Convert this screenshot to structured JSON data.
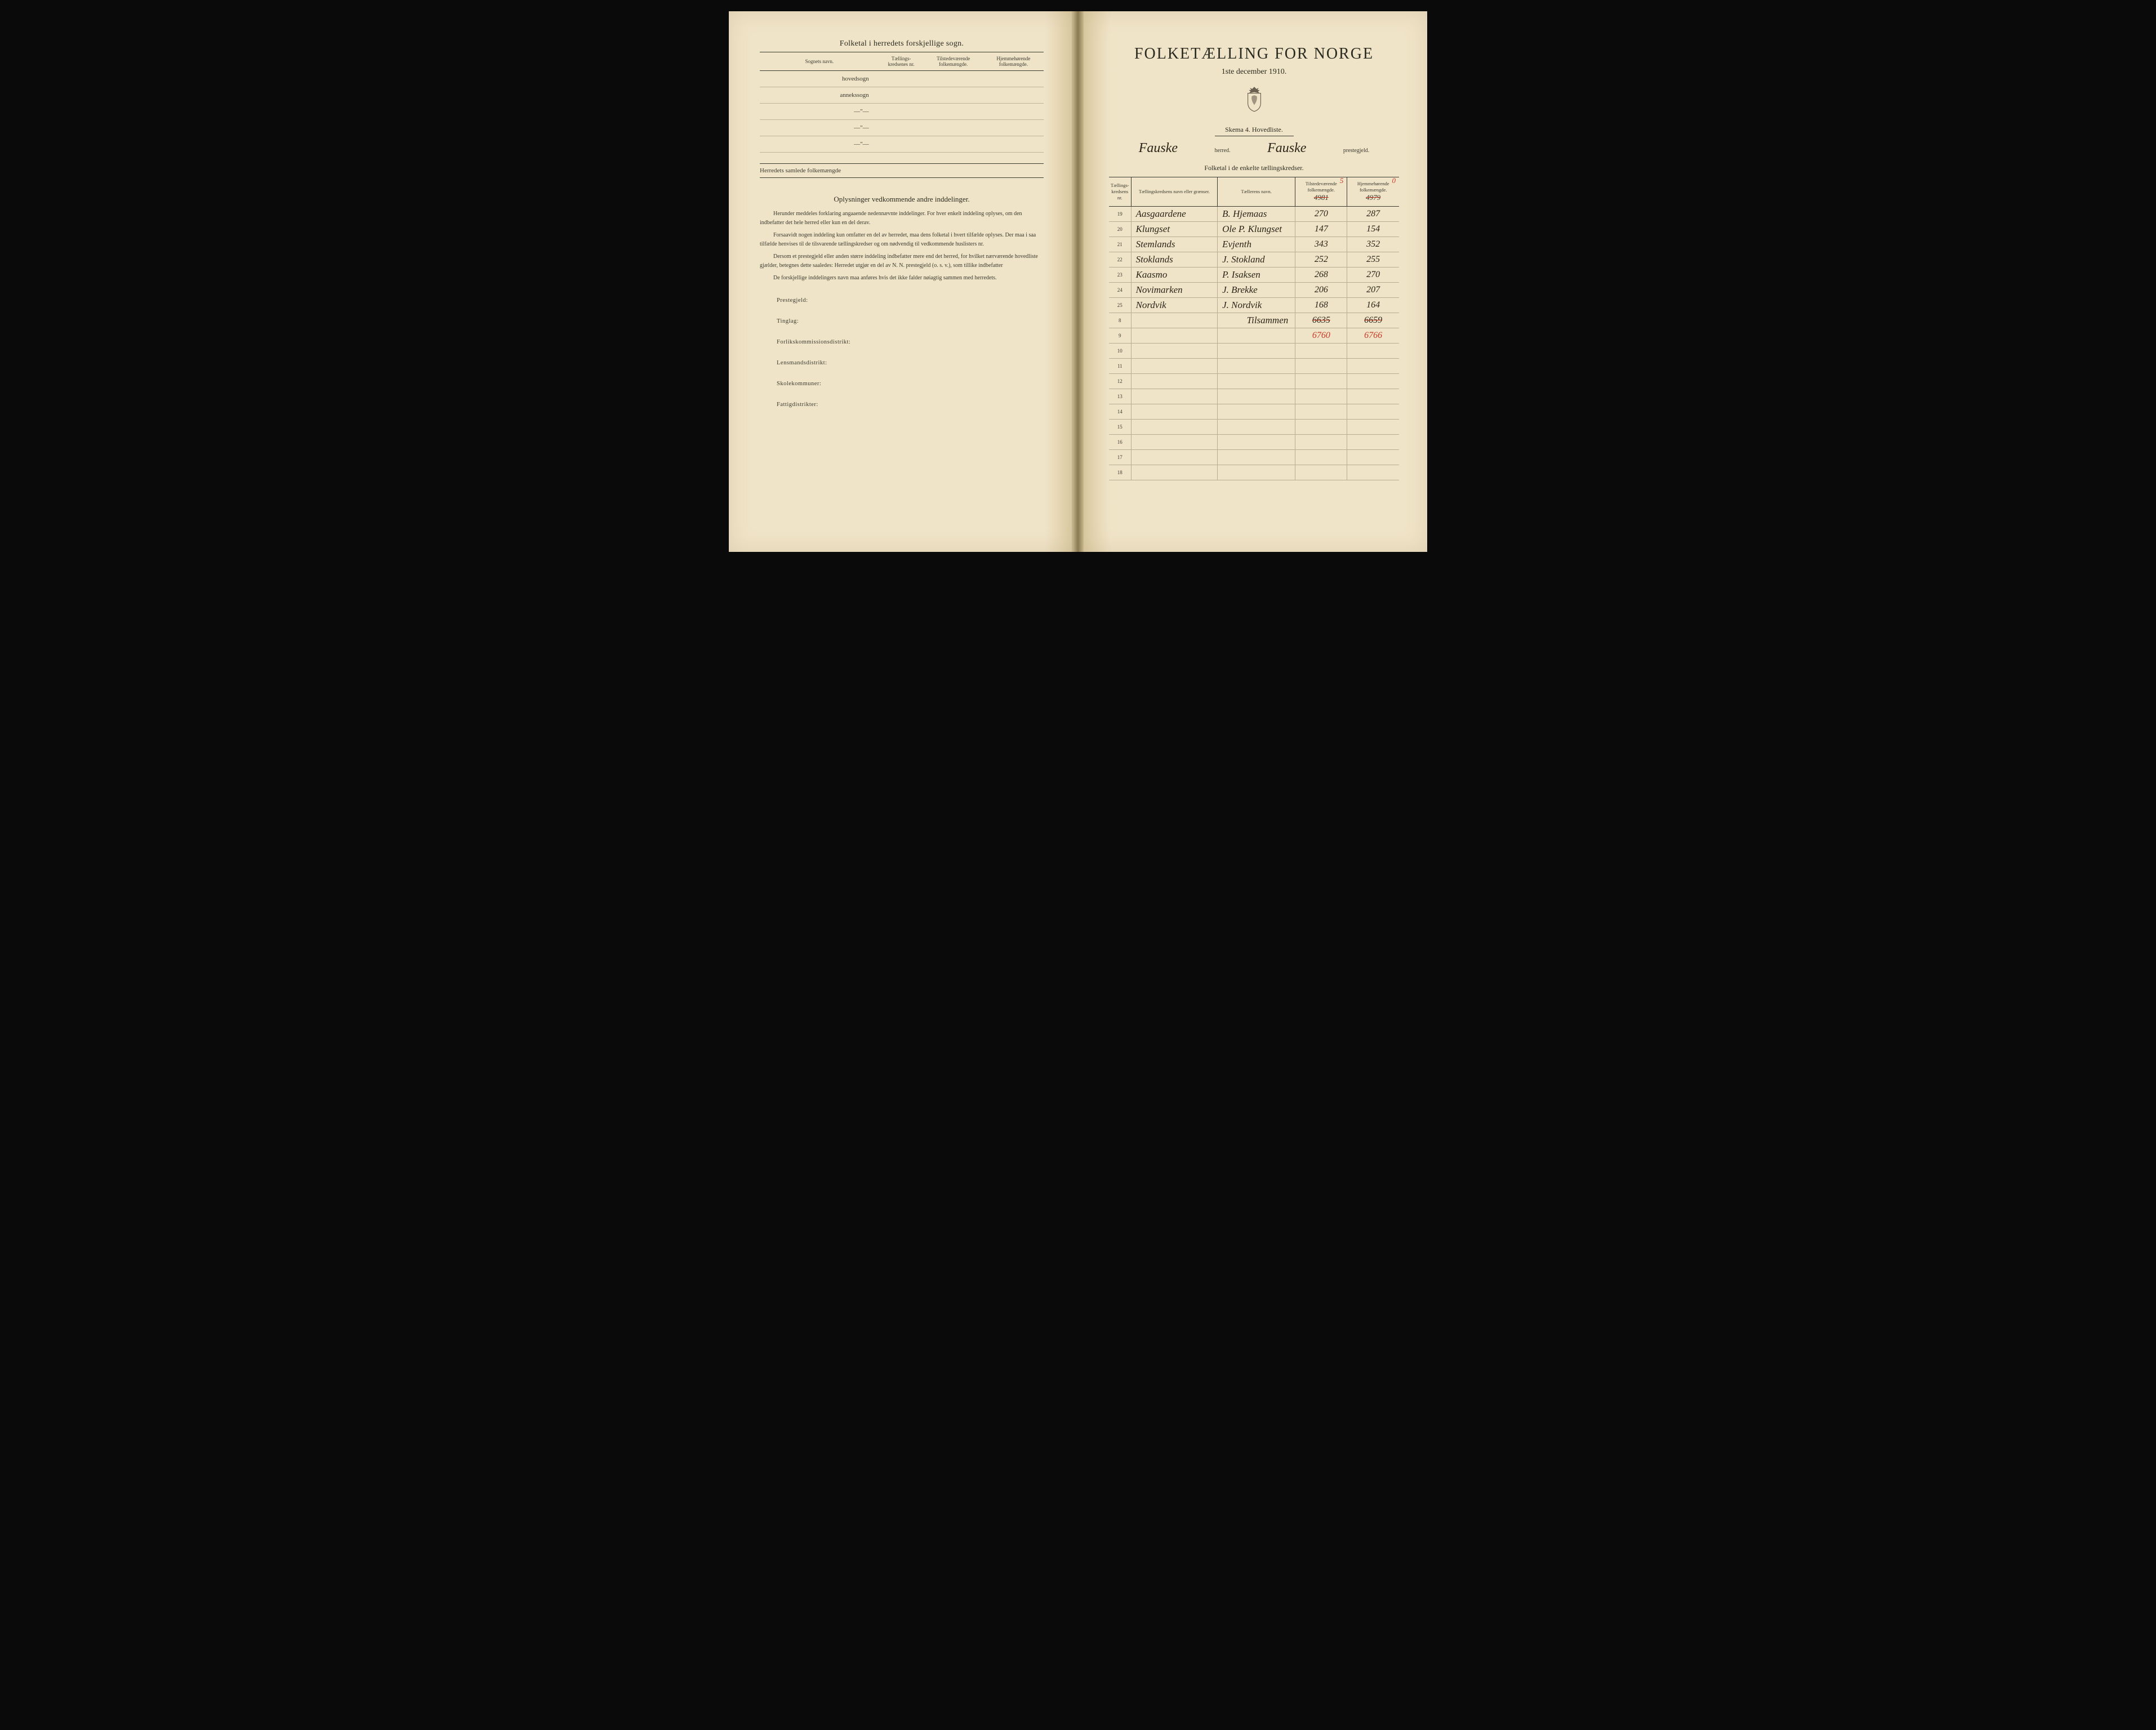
{
  "left": {
    "section_title": "Folketal i herredets forskjellige sogn.",
    "table_headers": [
      "Sognets navn.",
      "Tællings-\nkredsenes nr.",
      "Tilstedeværende\nfolkemængde.",
      "Hjemmehørende\nfolkemængde."
    ],
    "row_labels": [
      "hovedsogn",
      "annekssogn",
      "—\"—",
      "—\"—",
      "—\"—"
    ],
    "footer_label": "Herredets samlede folkemængde",
    "sub_heading": "Oplysninger vedkommende andre inddelinger.",
    "para1": "Herunder meddeles forklaring angaaende nedennævnte inddelinger. For hver enkelt inddeling oplyses, om den indbefatter det hele herred eller kun en del derav.",
    "para2": "Forsaavidt nogen inddeling kun omfatter en del av herredet, maa dens folketal i hvert tilfælde oplyses. Der maa i saa tilfælde henvises til de tilsvarende tællingskredser og om nødvendig til vedkommende huslisters nr.",
    "para3": "Dersom et prestegjeld eller anden større inddeling indbefatter mere end det herred, for hvilket nærværende hovedliste gjælder, betegnes dette saaledes: Herredet utgjør en del av N. N. prestegjeld (o. s. v.), som tillike indbefatter",
    "para4": "De forskjellige inddelingers navn maa anføres hvis det ikke falder nøiagtig sammen med herredets.",
    "field_labels": [
      "Prestegjeld:",
      "Tinglag:",
      "Forlikskommissionsdistrikt:",
      "Lensmandsdistrikt:",
      "Skolekommuner:",
      "Fattigdistrikter:"
    ]
  },
  "right": {
    "main_title": "FOLKETÆLLING FOR NORGE",
    "date_line": "1ste december 1910.",
    "skema": "Skema 4.   Hovedliste.",
    "herred_name": "Fauske",
    "herred_label": "herred.",
    "prestegjeld_name": "Fauske",
    "prestegjeld_label": "prestegjeld.",
    "sub_title": "Folketal i de enkelte tællingskredser.",
    "table_headers": [
      "Tællings-\nkredsens nr.",
      "Tællingskredsens navn eller grænser.",
      "Tællerens navn.",
      "Tilstedeværende\nfolkemængde.",
      "Hjemmehørende\nfolkemængde."
    ],
    "header_strike1": "4981",
    "header_strike2": "4979",
    "header_red1": "5",
    "header_red2": "0",
    "rows": [
      {
        "nr": "19",
        "navn": "Aasgaardene",
        "taeller": "B. Hjemaas",
        "tilst": "270",
        "hjem": "287"
      },
      {
        "nr": "20",
        "navn": "Klungset",
        "taeller": "Ole P. Klungset",
        "tilst": "147",
        "hjem": "154"
      },
      {
        "nr": "21",
        "navn": "Stemlands",
        "taeller": "Evjenth",
        "tilst": "343",
        "hjem": "352"
      },
      {
        "nr": "22",
        "navn": "Stoklands",
        "taeller": "J. Stokland",
        "tilst": "252",
        "hjem": "255"
      },
      {
        "nr": "23",
        "navn": "Kaasmo",
        "taeller": "P. Isaksen",
        "tilst": "268",
        "hjem": "270"
      },
      {
        "nr": "24",
        "navn": "Novimarken",
        "taeller": "J. Brekke",
        "tilst": "206",
        "hjem": "207"
      },
      {
        "nr": "25",
        "navn": "Nordvik",
        "taeller": "J. Nordvik",
        "tilst": "168",
        "hjem": "164"
      }
    ],
    "tilsammen_label": "Tilsammen",
    "sum_tilst": "6635",
    "sum_hjem": "6659",
    "red_tilst": "6760",
    "red_hjem": "6766",
    "empty_nrs": [
      "10",
      "11",
      "12",
      "13",
      "14",
      "15",
      "16",
      "17",
      "18"
    ],
    "row8_nr": "8",
    "row9_nr": "9"
  },
  "colors": {
    "paper": "#f0e4c8",
    "ink": "#2a2a20",
    "red": "#c83828"
  }
}
